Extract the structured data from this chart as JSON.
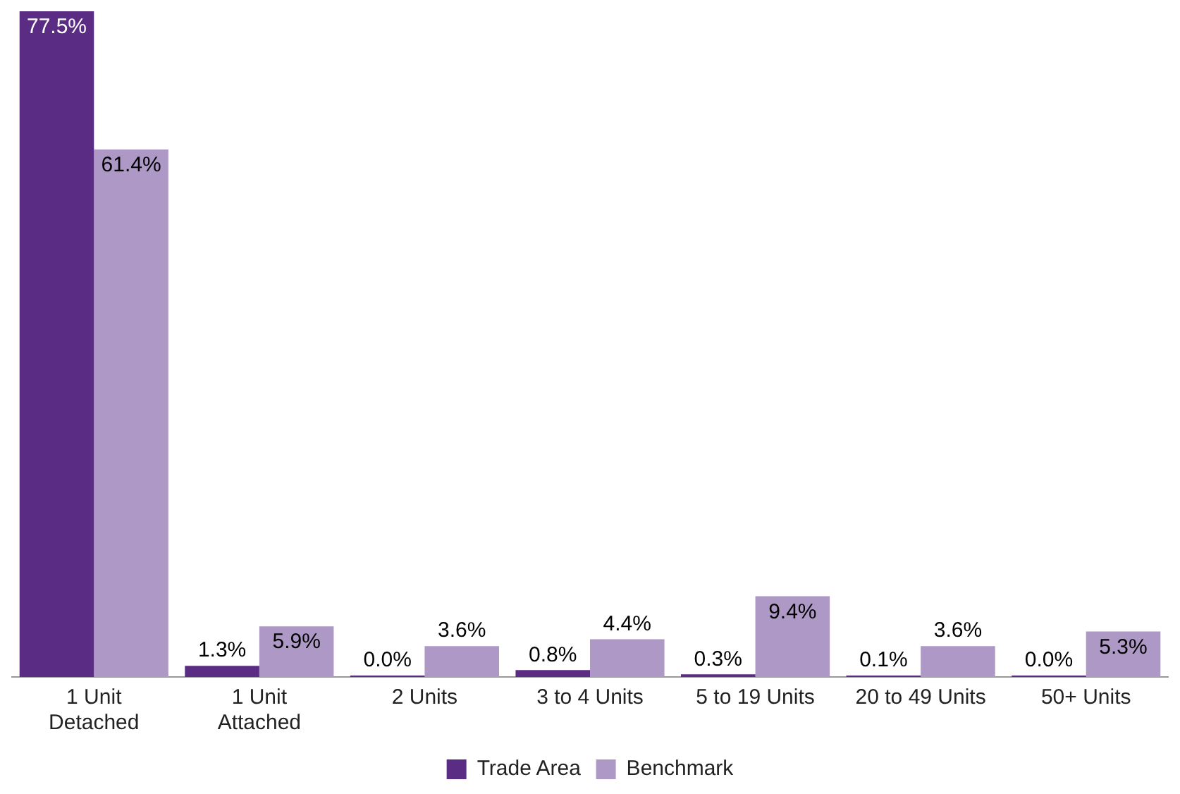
{
  "chart_data": {
    "type": "bar",
    "categories": [
      "1 Unit Detached",
      "1 Unit Attached",
      "2 Units",
      "3 to 4 Units",
      "5 to 19 Units",
      "20 to 49 Units",
      "50+ Units"
    ],
    "series": [
      {
        "name": "Trade Area",
        "color": "#5b2c83",
        "values": [
          77.5,
          1.3,
          0.0,
          0.8,
          0.3,
          0.1,
          0.0
        ],
        "value_labels": [
          "77.5%",
          "1.3%",
          "0.0%",
          "0.8%",
          "0.3%",
          "0.1%",
          "0.0%"
        ]
      },
      {
        "name": "Benchmark",
        "color": "#ae98c6",
        "values": [
          61.4,
          5.9,
          3.6,
          4.4,
          9.4,
          3.6,
          5.3
        ],
        "value_labels": [
          "61.4%",
          "5.9%",
          "3.6%",
          "4.4%",
          "9.4%",
          "3.6%",
          "5.3%"
        ]
      }
    ],
    "grid": false,
    "legend": "bottom"
  }
}
